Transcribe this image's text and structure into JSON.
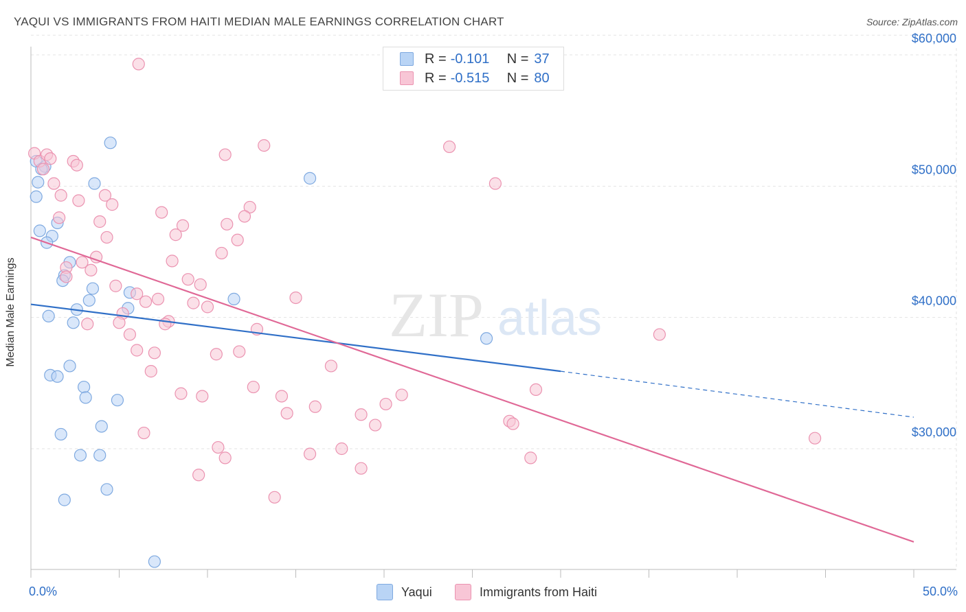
{
  "header": {
    "title": "YAQUI VS IMMIGRANTS FROM HAITI MEDIAN MALE EARNINGS CORRELATION CHART",
    "source_prefix": "Source: ",
    "source_site": "ZipAtlas.com"
  },
  "watermark": {
    "zip": "ZIP",
    "atlas": "atlas"
  },
  "legend": {
    "rows": [
      {
        "r_label": "R = ",
        "r_value": "-0.101",
        "n_label": "N = ",
        "n_value": "37",
        "color": "#a8c8f0"
      },
      {
        "r_label": "R = ",
        "r_value": "-0.515",
        "n_label": "N = ",
        "n_value": "80",
        "color": "#f5b8cc"
      }
    ]
  },
  "colors": {
    "yaqui_fill": "#b9d4f5",
    "yaqui_stroke": "#7ea9e0",
    "yaqui_line": "#2f6fc7",
    "haiti_fill": "#f8c6d6",
    "haiti_stroke": "#eb92b0",
    "haiti_line": "#e06896",
    "axis_text": "#2f6fc7",
    "grid": "#e3e3e3"
  },
  "chart_data": {
    "type": "scatter",
    "title": "YAQUI VS IMMIGRANTS FROM HAITI MEDIAN MALE EARNINGS CORRELATION CHART",
    "xlabel": "",
    "ylabel": "Median Male Earnings",
    "xlim": [
      0,
      50
    ],
    "ylim": [
      20000,
      61500
    ],
    "x_tick_labels": [
      "0.0%",
      "50.0%"
    ],
    "y_ticks": [
      30000,
      40000,
      50000,
      60000
    ],
    "y_tick_labels": [
      "$30,000",
      "$40,000",
      "$50,000",
      "$60,000"
    ],
    "grid": true,
    "legend_position": "bottom",
    "series": [
      {
        "name": "Yaqui",
        "points": [
          [
            0.3,
            51.9
          ],
          [
            0.8,
            51.5
          ],
          [
            0.6,
            51.3
          ],
          [
            0.4,
            50.3
          ],
          [
            0.3,
            49.2
          ],
          [
            1.5,
            47.2
          ],
          [
            0.5,
            46.6
          ],
          [
            1.2,
            46.2
          ],
          [
            0.9,
            45.7
          ],
          [
            2.2,
            44.2
          ],
          [
            1.9,
            43.2
          ],
          [
            1.8,
            42.8
          ],
          [
            3.5,
            42.2
          ],
          [
            5.6,
            41.9
          ],
          [
            3.3,
            41.3
          ],
          [
            2.6,
            40.6
          ],
          [
            5.5,
            40.7
          ],
          [
            1.0,
            40.1
          ],
          [
            2.4,
            39.6
          ],
          [
            4.5,
            53.3
          ],
          [
            3.6,
            50.2
          ],
          [
            15.8,
            50.6
          ],
          [
            11.5,
            41.4
          ],
          [
            25.8,
            38.4
          ],
          [
            2.2,
            36.3
          ],
          [
            1.1,
            35.6
          ],
          [
            1.5,
            35.5
          ],
          [
            3.0,
            34.7
          ],
          [
            3.1,
            33.9
          ],
          [
            4.9,
            33.7
          ],
          [
            4.0,
            31.7
          ],
          [
            1.7,
            31.1
          ],
          [
            2.8,
            29.5
          ],
          [
            3.9,
            29.5
          ],
          [
            4.3,
            26.9
          ],
          [
            1.9,
            26.1
          ],
          [
            7.0,
            21.4
          ]
        ]
      },
      {
        "name": "Immigrants from Haiti",
        "points": [
          [
            0.2,
            52.5
          ],
          [
            0.5,
            51.9
          ],
          [
            0.9,
            52.4
          ],
          [
            1.1,
            52.1
          ],
          [
            0.7,
            51.3
          ],
          [
            2.4,
            51.9
          ],
          [
            2.6,
            51.6
          ],
          [
            6.1,
            59.3
          ],
          [
            13.2,
            53.1
          ],
          [
            11.0,
            52.4
          ],
          [
            23.7,
            53.0
          ],
          [
            26.3,
            50.2
          ],
          [
            1.3,
            50.2
          ],
          [
            1.7,
            49.3
          ],
          [
            2.7,
            48.9
          ],
          [
            4.2,
            49.3
          ],
          [
            4.6,
            48.6
          ],
          [
            12.4,
            48.4
          ],
          [
            7.4,
            48.0
          ],
          [
            12.1,
            47.7
          ],
          [
            1.6,
            47.6
          ],
          [
            3.9,
            47.3
          ],
          [
            8.6,
            47.0
          ],
          [
            11.1,
            47.1
          ],
          [
            8.2,
            46.3
          ],
          [
            4.3,
            46.1
          ],
          [
            11.7,
            45.9
          ],
          [
            10.8,
            44.9
          ],
          [
            3.7,
            44.6
          ],
          [
            8.0,
            44.3
          ],
          [
            2.9,
            44.2
          ],
          [
            2.0,
            43.8
          ],
          [
            3.4,
            43.6
          ],
          [
            2.0,
            43.1
          ],
          [
            8.9,
            42.9
          ],
          [
            9.6,
            42.5
          ],
          [
            4.8,
            42.4
          ],
          [
            6.0,
            41.8
          ],
          [
            7.2,
            41.4
          ],
          [
            6.5,
            41.2
          ],
          [
            9.2,
            41.1
          ],
          [
            10.0,
            40.8
          ],
          [
            15.0,
            41.5
          ],
          [
            5.2,
            40.3
          ],
          [
            5.0,
            39.6
          ],
          [
            3.2,
            39.5
          ],
          [
            7.8,
            39.7
          ],
          [
            7.6,
            39.5
          ],
          [
            12.8,
            39.1
          ],
          [
            5.6,
            38.7
          ],
          [
            35.6,
            38.7
          ],
          [
            6.0,
            37.5
          ],
          [
            7.0,
            37.3
          ],
          [
            10.5,
            37.2
          ],
          [
            11.8,
            37.4
          ],
          [
            17.0,
            36.3
          ],
          [
            6.8,
            35.9
          ],
          [
            12.6,
            34.7
          ],
          [
            28.6,
            34.5
          ],
          [
            8.5,
            34.2
          ],
          [
            9.7,
            34.0
          ],
          [
            14.2,
            34.0
          ],
          [
            21.0,
            34.1
          ],
          [
            20.1,
            33.4
          ],
          [
            16.1,
            33.2
          ],
          [
            14.5,
            32.7
          ],
          [
            18.7,
            32.6
          ],
          [
            27.1,
            32.1
          ],
          [
            27.3,
            31.9
          ],
          [
            19.5,
            31.8
          ],
          [
            6.4,
            31.2
          ],
          [
            44.4,
            30.8
          ],
          [
            10.6,
            30.1
          ],
          [
            17.6,
            30.0
          ],
          [
            15.8,
            29.6
          ],
          [
            11.0,
            29.3
          ],
          [
            28.3,
            29.3
          ],
          [
            18.7,
            28.5
          ],
          [
            9.5,
            28.0
          ],
          [
            13.8,
            26.3
          ]
        ]
      }
    ],
    "trend_lines": [
      {
        "series": "Yaqui",
        "solid": [
          [
            0,
            41.0
          ],
          [
            30,
            35.9
          ]
        ],
        "dashed": [
          [
            30,
            35.9
          ],
          [
            50,
            32.4
          ]
        ]
      },
      {
        "series": "Immigrants from Haiti",
        "solid": [
          [
            0,
            46.1
          ],
          [
            50,
            22.9
          ]
        ]
      }
    ],
    "y_value_unit": "thousands of dollars"
  },
  "bottom_legend": {
    "items": [
      "Yaqui",
      "Immigrants from Haiti"
    ]
  }
}
